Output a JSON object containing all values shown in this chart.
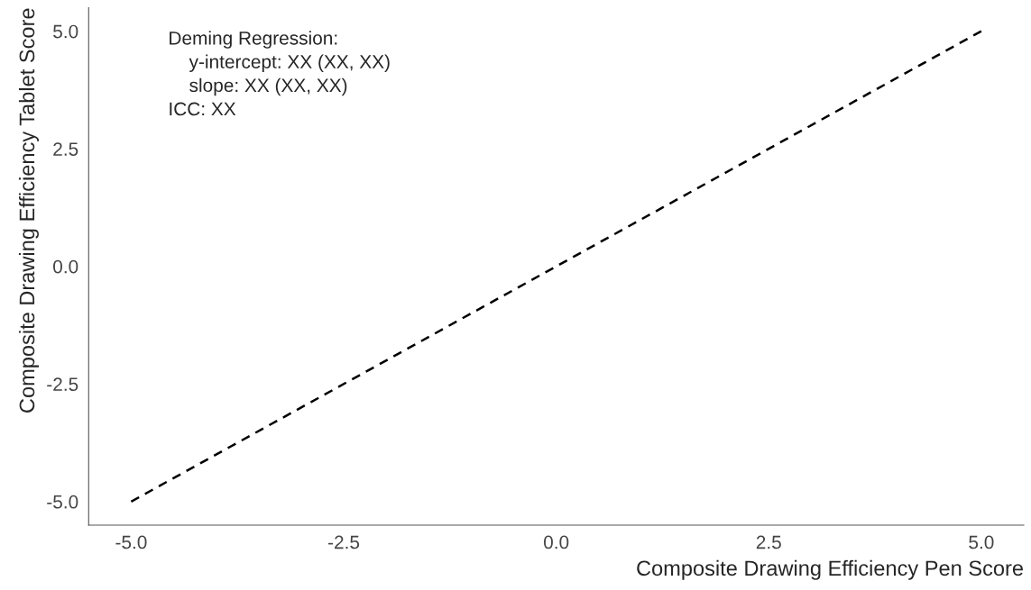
{
  "chart_data": {
    "type": "line",
    "xlabel": "Composite Drawing Efficiency Pen Score",
    "ylabel": "Composite Drawing Efficiency Tablet Score",
    "x": [
      -5.0,
      5.0
    ],
    "series": [
      {
        "color": "#000000",
        "values": [
          -5.0,
          5.0
        ],
        "line_style": "dashed"
      }
    ],
    "xlim": [
      -5.5,
      5.5
    ],
    "ylim": [
      -5.5,
      5.5
    ],
    "xticks": [
      {
        "value": -5,
        "label": "-5.0"
      },
      {
        "value": -2.5,
        "label": "-2.5"
      },
      {
        "value": 0,
        "label": "0.0"
      },
      {
        "value": 2.5,
        "label": "2.5"
      },
      {
        "value": 5,
        "label": "5.0"
      }
    ],
    "yticks": [
      {
        "value": -5,
        "label": "-5.0"
      },
      {
        "value": -2.5,
        "label": "-2.5"
      },
      {
        "value": 0,
        "label": "0.0"
      },
      {
        "value": 2.5,
        "label": "2.5"
      },
      {
        "value": 5,
        "label": "5.0"
      }
    ],
    "grid": false,
    "legend": false,
    "annotations": [
      "Deming Regression:\n    y-intercept: XX (XX, XX)\n    slope: XX (XX, XX)\nICC: XX"
    ]
  }
}
